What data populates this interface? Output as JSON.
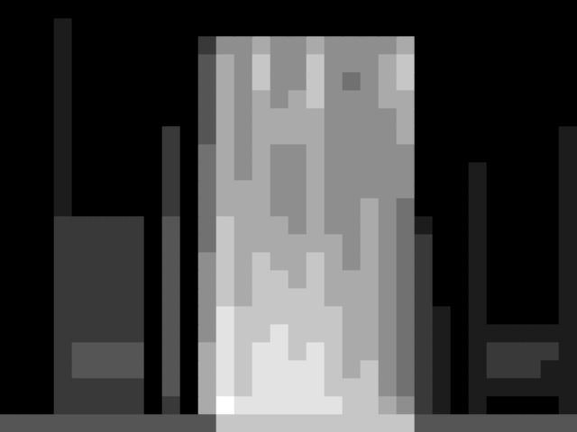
{
  "chart_data": {
    "type": "heatmap",
    "tick_labels": false,
    "cells": [
      [
        0,
        0,
        0,
        0,
        0,
        0,
        0,
        0,
        0,
        0,
        0,
        0,
        0,
        0,
        0,
        0,
        0,
        0,
        0,
        0,
        0,
        0,
        0,
        0,
        0,
        0,
        0,
        0,
        0,
        0,
        0,
        0
      ],
      [
        0,
        0,
        0,
        1,
        0,
        0,
        0,
        0,
        0,
        0,
        0,
        0,
        0,
        0,
        0,
        0,
        0,
        0,
        0,
        0,
        0,
        0,
        0,
        0,
        0,
        0,
        0,
        0,
        0,
        0,
        0,
        0
      ],
      [
        0,
        0,
        0,
        1,
        0,
        0,
        0,
        0,
        0,
        0,
        0,
        2,
        5,
        5,
        6,
        5,
        5,
        6,
        5,
        5,
        5,
        5,
        6,
        0,
        0,
        0,
        0,
        0,
        0,
        0,
        0,
        0
      ],
      [
        0,
        0,
        0,
        1,
        0,
        0,
        0,
        0,
        0,
        0,
        0,
        3,
        6,
        5,
        7,
        5,
        5,
        7,
        5,
        5,
        5,
        6,
        7,
        0,
        0,
        0,
        0,
        0,
        0,
        0,
        0,
        0
      ],
      [
        0,
        0,
        0,
        1,
        0,
        0,
        0,
        0,
        0,
        0,
        0,
        3,
        6,
        5,
        7,
        5,
        5,
        7,
        5,
        4,
        5,
        6,
        7,
        0,
        0,
        0,
        0,
        0,
        0,
        0,
        0,
        0
      ],
      [
        0,
        0,
        0,
        1,
        0,
        0,
        0,
        0,
        0,
        0,
        0,
        3,
        6,
        5,
        6,
        5,
        6,
        7,
        5,
        5,
        5,
        6,
        6,
        0,
        0,
        0,
        0,
        0,
        0,
        0,
        0,
        0
      ],
      [
        0,
        0,
        0,
        1,
        0,
        0,
        0,
        0,
        0,
        0,
        0,
        3,
        6,
        5,
        6,
        6,
        6,
        6,
        5,
        5,
        5,
        5,
        6,
        0,
        0,
        0,
        0,
        0,
        0,
        0,
        0,
        0
      ],
      [
        0,
        0,
        0,
        1,
        0,
        0,
        0,
        0,
        0,
        2,
        0,
        3,
        6,
        5,
        6,
        6,
        6,
        6,
        5,
        5,
        5,
        5,
        6,
        0,
        0,
        0,
        0,
        0,
        0,
        0,
        0,
        1
      ],
      [
        0,
        0,
        0,
        1,
        0,
        0,
        0,
        0,
        0,
        2,
        0,
        4,
        6,
        5,
        6,
        5,
        5,
        6,
        5,
        5,
        5,
        5,
        5,
        0,
        0,
        0,
        0,
        0,
        0,
        0,
        0,
        1
      ],
      [
        0,
        0,
        0,
        1,
        0,
        0,
        0,
        0,
        0,
        2,
        0,
        4,
        6,
        5,
        6,
        5,
        5,
        6,
        5,
        5,
        5,
        5,
        5,
        0,
        0,
        0,
        1,
        0,
        0,
        0,
        0,
        1
      ],
      [
        0,
        0,
        0,
        1,
        0,
        0,
        0,
        0,
        0,
        2,
        0,
        4,
        6,
        6,
        6,
        5,
        5,
        6,
        5,
        5,
        5,
        5,
        5,
        0,
        0,
        0,
        1,
        0,
        0,
        0,
        0,
        1
      ],
      [
        0,
        0,
        0,
        1,
        0,
        0,
        0,
        0,
        0,
        2,
        0,
        4,
        6,
        6,
        6,
        5,
        5,
        6,
        5,
        5,
        6,
        5,
        4,
        0,
        0,
        0,
        1,
        0,
        0,
        0,
        0,
        1
      ],
      [
        0,
        0,
        0,
        2,
        2,
        2,
        2,
        2,
        0,
        3,
        0,
        4,
        7,
        6,
        6,
        6,
        5,
        6,
        5,
        5,
        6,
        5,
        4,
        1,
        0,
        0,
        1,
        0,
        0,
        0,
        0,
        1
      ],
      [
        0,
        0,
        0,
        2,
        2,
        2,
        2,
        2,
        0,
        3,
        0,
        4,
        7,
        6,
        6,
        6,
        6,
        6,
        6,
        5,
        6,
        5,
        4,
        2,
        0,
        0,
        1,
        0,
        0,
        0,
        0,
        1
      ],
      [
        0,
        0,
        0,
        2,
        2,
        2,
        2,
        2,
        0,
        3,
        0,
        5,
        7,
        6,
        7,
        6,
        6,
        7,
        6,
        5,
        6,
        5,
        4,
        2,
        0,
        0,
        1,
        0,
        0,
        0,
        0,
        1
      ],
      [
        0,
        0,
        0,
        2,
        2,
        2,
        2,
        2,
        0,
        3,
        0,
        5,
        7,
        6,
        7,
        7,
        6,
        7,
        6,
        6,
        6,
        5,
        4,
        2,
        0,
        0,
        1,
        0,
        0,
        0,
        0,
        1
      ],
      [
        0,
        0,
        0,
        2,
        2,
        2,
        2,
        2,
        0,
        3,
        0,
        5,
        7,
        6,
        7,
        7,
        7,
        7,
        6,
        6,
        6,
        5,
        4,
        2,
        0,
        0,
        1,
        0,
        0,
        0,
        0,
        1
      ],
      [
        0,
        0,
        0,
        2,
        2,
        2,
        2,
        2,
        0,
        3,
        0,
        5,
        8,
        7,
        7,
        7,
        7,
        7,
        7,
        6,
        6,
        5,
        4,
        2,
        1,
        0,
        1,
        0,
        0,
        0,
        0,
        1
      ],
      [
        0,
        0,
        0,
        2,
        2,
        2,
        2,
        2,
        0,
        3,
        0,
        5,
        8,
        7,
        7,
        8,
        7,
        7,
        7,
        6,
        6,
        5,
        4,
        2,
        1,
        0,
        1,
        1,
        1,
        1,
        1,
        1
      ],
      [
        0,
        0,
        0,
        2,
        3,
        3,
        3,
        3,
        0,
        3,
        0,
        6,
        8,
        7,
        8,
        8,
        7,
        8,
        7,
        6,
        6,
        5,
        4,
        2,
        1,
        0,
        1,
        2,
        2,
        2,
        2,
        1
      ],
      [
        0,
        0,
        0,
        2,
        3,
        3,
        3,
        3,
        0,
        3,
        0,
        6,
        8,
        7,
        8,
        8,
        8,
        8,
        7,
        6,
        7,
        5,
        4,
        2,
        1,
        0,
        1,
        2,
        2,
        2,
        1,
        1
      ],
      [
        0,
        0,
        0,
        2,
        2,
        2,
        2,
        2,
        0,
        3,
        0,
        6,
        8,
        7,
        8,
        8,
        8,
        8,
        7,
        7,
        7,
        5,
        4,
        2,
        1,
        0,
        1,
        1,
        1,
        1,
        1,
        1
      ],
      [
        0,
        0,
        0,
        2,
        2,
        2,
        2,
        2,
        0,
        2,
        0,
        6,
        9,
        8,
        8,
        8,
        8,
        8,
        8,
        7,
        7,
        6,
        5,
        2,
        1,
        0,
        1,
        0,
        0,
        0,
        0,
        1
      ],
      [
        3,
        3,
        3,
        3,
        3,
        3,
        3,
        3,
        3,
        3,
        3,
        3,
        7,
        7,
        7,
        7,
        7,
        7,
        7,
        7,
        7,
        7,
        7,
        3,
        3,
        3,
        3,
        3,
        3,
        3,
        3,
        3
      ]
    ]
  }
}
